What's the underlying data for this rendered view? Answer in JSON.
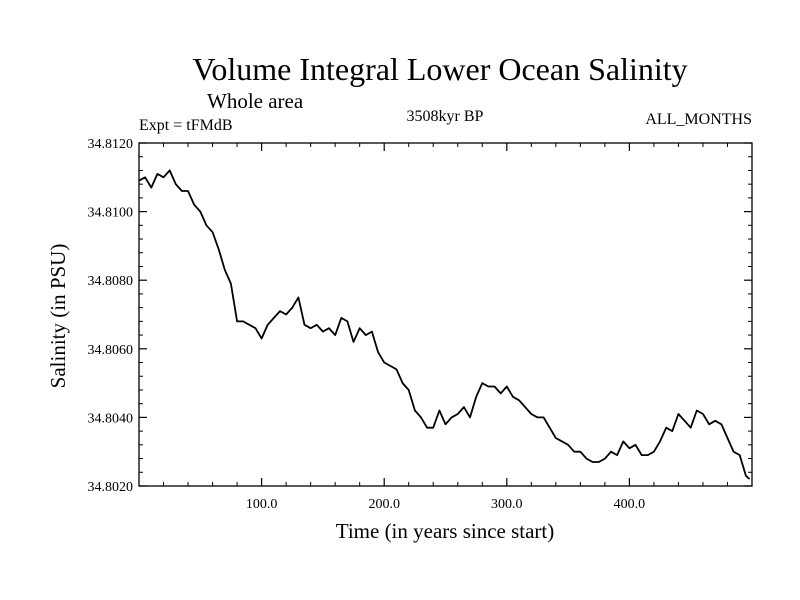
{
  "chart_data": {
    "type": "line",
    "title": "Volume Integral Lower Ocean Salinity",
    "subtitle": "Whole area",
    "experiment_label": "Expt = tFMdB",
    "period_label": "3508kyr BP",
    "months_label": "ALL_MONTHS",
    "xlabel": "Time (in years since start)",
    "ylabel": "Salinity (in PSU)",
    "xlim": [
      0,
      500
    ],
    "ylim": [
      34.802,
      34.812
    ],
    "x_tick_values": [
      100,
      200,
      300,
      400
    ],
    "x_tick_labels": [
      "100.0",
      "200.0",
      "300.0",
      "400.0"
    ],
    "y_tick_values": [
      34.802,
      34.804,
      34.806,
      34.808,
      34.81,
      34.812
    ],
    "y_tick_labels": [
      "34.8020",
      "34.8040",
      "34.8060",
      "34.8080",
      "34.8100",
      "34.8120"
    ],
    "series": [
      {
        "name": "Salinity",
        "x": [
          0,
          5,
          10,
          15,
          20,
          25,
          30,
          35,
          40,
          45,
          50,
          55,
          60,
          65,
          70,
          75,
          80,
          85,
          90,
          95,
          100,
          105,
          110,
          115,
          120,
          125,
          130,
          135,
          140,
          145,
          150,
          155,
          160,
          165,
          170,
          175,
          180,
          185,
          190,
          195,
          200,
          205,
          210,
          215,
          220,
          225,
          230,
          235,
          240,
          245,
          250,
          255,
          260,
          265,
          270,
          275,
          280,
          285,
          290,
          295,
          300,
          305,
          310,
          315,
          320,
          325,
          330,
          335,
          340,
          345,
          350,
          355,
          360,
          365,
          370,
          375,
          380,
          385,
          390,
          395,
          400,
          405,
          410,
          415,
          420,
          425,
          430,
          435,
          440,
          445,
          450,
          455,
          460,
          465,
          470,
          475,
          480,
          485,
          490,
          495,
          498
        ],
        "values": [
          34.8109,
          34.811,
          34.8107,
          34.8111,
          34.811,
          34.8112,
          34.8108,
          34.8106,
          34.8106,
          34.8102,
          34.81,
          34.8096,
          34.8094,
          34.8089,
          34.8083,
          34.8079,
          34.8068,
          34.8068,
          34.8067,
          34.8066,
          34.8063,
          34.8067,
          34.8069,
          34.8071,
          34.807,
          34.8072,
          34.8075,
          34.8067,
          34.8066,
          34.8067,
          34.8065,
          34.8066,
          34.8064,
          34.8069,
          34.8068,
          34.8062,
          34.8066,
          34.8064,
          34.8065,
          34.8059,
          34.8056,
          34.8055,
          34.8054,
          34.805,
          34.8048,
          34.8042,
          34.804,
          34.8037,
          34.8037,
          34.8042,
          34.8038,
          34.804,
          34.8041,
          34.8043,
          34.804,
          34.8046,
          34.805,
          34.8049,
          34.8049,
          34.8047,
          34.8049,
          34.8046,
          34.8045,
          34.8043,
          34.8041,
          34.804,
          34.804,
          34.8037,
          34.8034,
          34.8033,
          34.8032,
          34.803,
          34.803,
          34.8028,
          34.8027,
          34.8027,
          34.8028,
          34.803,
          34.8029,
          34.8033,
          34.8031,
          34.8032,
          34.8029,
          34.8029,
          34.803,
          34.8033,
          34.8037,
          34.8036,
          34.8041,
          34.8039,
          34.8037,
          34.8042,
          34.8041,
          34.8038,
          34.8039,
          34.8038,
          34.8034,
          34.803,
          34.8029,
          34.8023,
          34.8022
        ]
      }
    ]
  }
}
